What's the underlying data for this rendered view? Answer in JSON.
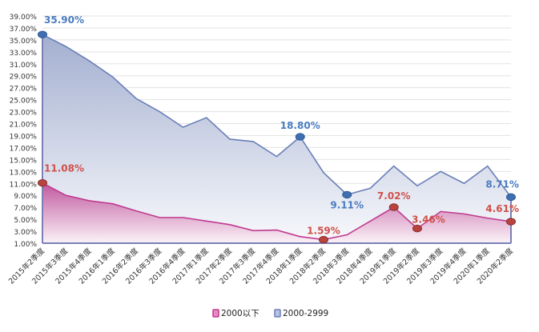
{
  "chart_data": {
    "type": "area",
    "title": "",
    "xlabel": "",
    "ylabel": "",
    "ylim": [
      1,
      39
    ],
    "ytick_step": 2,
    "ytick_format": "percent-2dp",
    "grid": true,
    "legend_position": "bottom",
    "categories": [
      "2015年2季度",
      "2015年3季度",
      "2015年4季度",
      "2016年1季度",
      "2016年2季度",
      "2016年3季度",
      "2016年4季度",
      "2017年1季度",
      "2017年2季度",
      "2017年3季度",
      "2017年4季度",
      "2018年1季度",
      "2018年2季度",
      "2018年3季度",
      "2018年4季度",
      "2019年1季度",
      "2019年2季度",
      "2019年3季度",
      "2019年4季度",
      "2020年1季度",
      "2020年2季度"
    ],
    "series": [
      {
        "name": "2000-2999",
        "color": "#6a7fb8",
        "marker_color": "#3f6fb0",
        "label_color": "#4a7cc0",
        "values": [
          35.9,
          33.9,
          31.5,
          28.8,
          25.2,
          23.0,
          20.4,
          22.0,
          18.4,
          18.0,
          15.5,
          18.8,
          12.8,
          9.11,
          10.2,
          13.9,
          10.6,
          13.0,
          11.0,
          13.9,
          8.71
        ],
        "labels": [
          {
            "index": 0,
            "text": "35.90%"
          },
          {
            "index": 11,
            "text": "18.80%"
          },
          {
            "index": 13,
            "text": "9.11%"
          },
          {
            "index": 20,
            "text": "8.71%"
          }
        ]
      },
      {
        "name": "2000以下",
        "color": "#c0398f",
        "marker_color": "#b8443f",
        "label_color": "#d0504a",
        "values": [
          11.08,
          9.0,
          8.1,
          7.6,
          6.4,
          5.3,
          5.3,
          4.7,
          4.1,
          3.1,
          3.2,
          2.1,
          1.59,
          2.4,
          4.7,
          7.02,
          3.46,
          6.3,
          5.9,
          5.2,
          4.61
        ],
        "labels": [
          {
            "index": 0,
            "text": "11.08%"
          },
          {
            "index": 12,
            "text": "1.59%"
          },
          {
            "index": 15,
            "text": "7.02%"
          },
          {
            "index": 16,
            "text": "3.46%"
          },
          {
            "index": 20,
            "text": "4.61%"
          }
        ]
      }
    ]
  }
}
